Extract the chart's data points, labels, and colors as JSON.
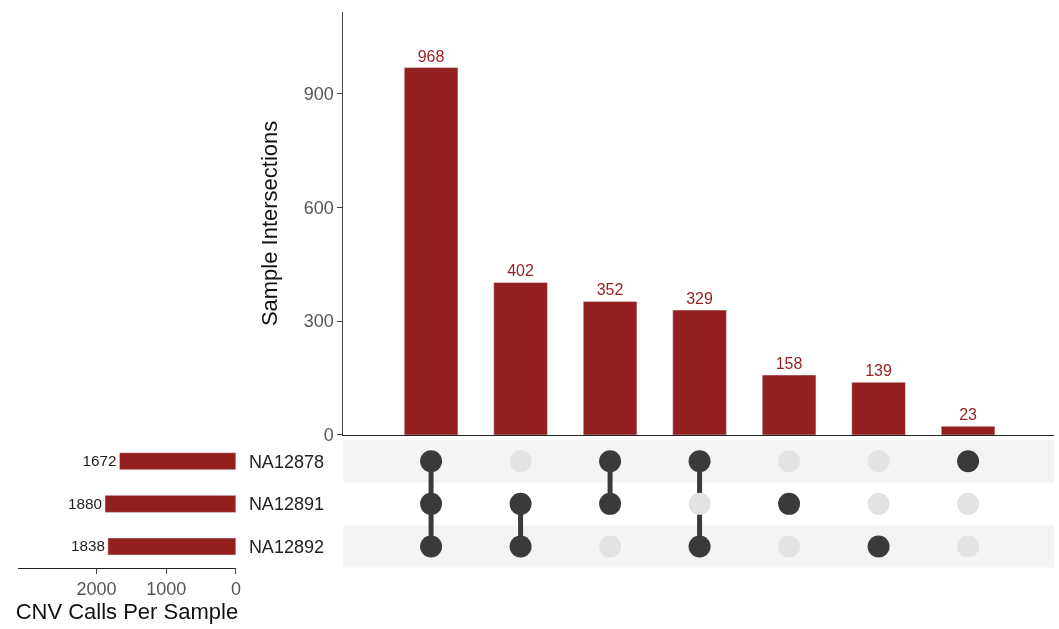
{
  "chart_data": [
    {
      "type": "bar",
      "categories": [
        null,
        null,
        null,
        null,
        null,
        null,
        null
      ],
      "values": [
        968,
        402,
        352,
        329,
        158,
        139,
        23
      ],
      "color": "#931f1e",
      "ylabel": "Sample Intersections",
      "ylim": [
        0,
        1115
      ],
      "yticks": [
        0,
        300,
        600,
        900
      ],
      "data_labels": true,
      "tick_labels": "y"
    },
    {
      "type": "bar",
      "orientation": "horizontal",
      "categories": [
        "NA12878",
        "NA12891",
        "NA12892"
      ],
      "values": [
        1672,
        1880,
        1838
      ],
      "color": "#931f1e",
      "xlabel": "CNV Calls Per Sample",
      "xlim": [
        3130,
        0
      ],
      "xticks": [
        2000,
        1000,
        0
      ],
      "data_labels": true
    }
  ]
}
